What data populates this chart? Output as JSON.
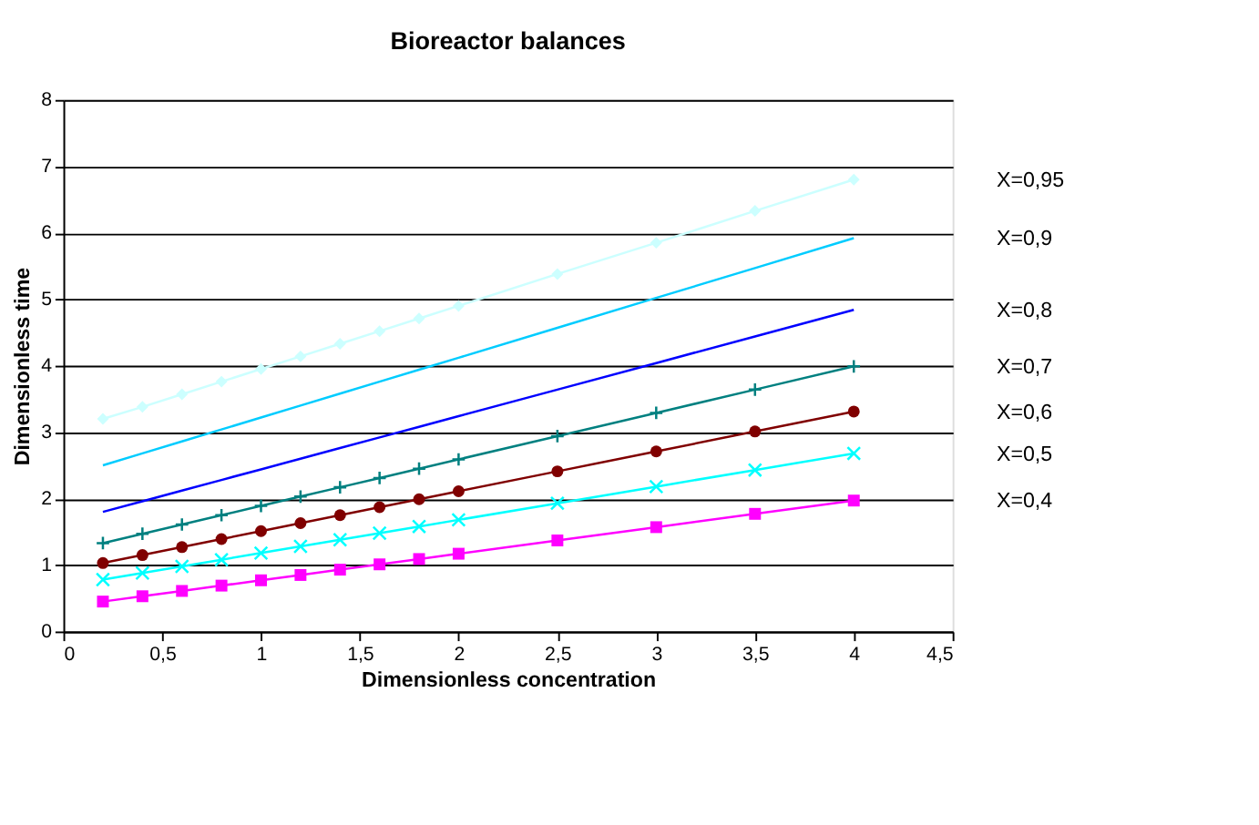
{
  "chart_data": {
    "type": "line",
    "title": "Bioreactor balances",
    "xlabel": "Dimensionless concentration",
    "ylabel": "Dimensionless time",
    "x": [
      0.2,
      0.4,
      0.6,
      0.8,
      1.0,
      1.2,
      1.4,
      1.6,
      1.8,
      2.0,
      2.5,
      3.0,
      3.5,
      4.0
    ],
    "series": [
      {
        "name": "X=0,95",
        "color": "#ccffff",
        "marker": "diamond",
        "values": [
          3.2,
          3.38,
          3.57,
          3.76,
          3.95,
          4.14,
          4.33,
          4.52,
          4.71,
          4.9,
          5.38,
          5.85,
          6.33,
          6.8
        ]
      },
      {
        "name": "X=0,9",
        "color": "#00ccff",
        "marker": "none",
        "values": [
          2.5,
          2.68,
          2.86,
          3.04,
          3.22,
          3.4,
          3.58,
          3.76,
          3.94,
          4.12,
          4.57,
          5.02,
          5.47,
          5.92
        ]
      },
      {
        "name": "X=0,8",
        "color": "#0000ff",
        "marker": "none",
        "values": [
          1.8,
          1.96,
          2.12,
          2.28,
          2.44,
          2.6,
          2.76,
          2.92,
          3.08,
          3.24,
          3.64,
          4.04,
          4.44,
          4.84
        ]
      },
      {
        "name": "X=0,7",
        "color": "#008080",
        "marker": "cross",
        "values": [
          1.33,
          1.47,
          1.61,
          1.75,
          1.89,
          2.03,
          2.17,
          2.31,
          2.45,
          2.59,
          2.94,
          3.29,
          3.64,
          3.99
        ]
      },
      {
        "name": "X=0,6",
        "color": "#800000",
        "marker": "circle",
        "values": [
          1.03,
          1.15,
          1.27,
          1.39,
          1.51,
          1.63,
          1.75,
          1.87,
          1.99,
          2.11,
          2.41,
          2.71,
          3.01,
          3.31
        ]
      },
      {
        "name": "X=0,5",
        "color": "#00ffff",
        "marker": "x",
        "values": [
          0.78,
          0.88,
          0.98,
          1.08,
          1.18,
          1.28,
          1.38,
          1.48,
          1.58,
          1.68,
          1.93,
          2.18,
          2.43,
          2.68
        ]
      },
      {
        "name": "X=0,4",
        "color": "#ff00ff",
        "marker": "square",
        "values": [
          0.45,
          0.53,
          0.61,
          0.69,
          0.77,
          0.85,
          0.93,
          1.01,
          1.09,
          1.17,
          1.37,
          1.57,
          1.77,
          1.97
        ]
      }
    ],
    "xlim": [
      0,
      4.5
    ],
    "ylim": [
      0,
      8
    ],
    "xticks": [
      0,
      {
        "value": 0.5,
        "label": "0,5"
      },
      1,
      {
        "value": 1.5,
        "label": "1,5"
      },
      2,
      {
        "value": 2.5,
        "label": "2,5"
      },
      3,
      {
        "value": 3.5,
        "label": "3,5"
      },
      4,
      {
        "value": 4.5,
        "label": "4,5"
      }
    ],
    "yticks": [
      0,
      1,
      2,
      3,
      4,
      5,
      6,
      7,
      8
    ],
    "grid": "y",
    "legend": false
  }
}
